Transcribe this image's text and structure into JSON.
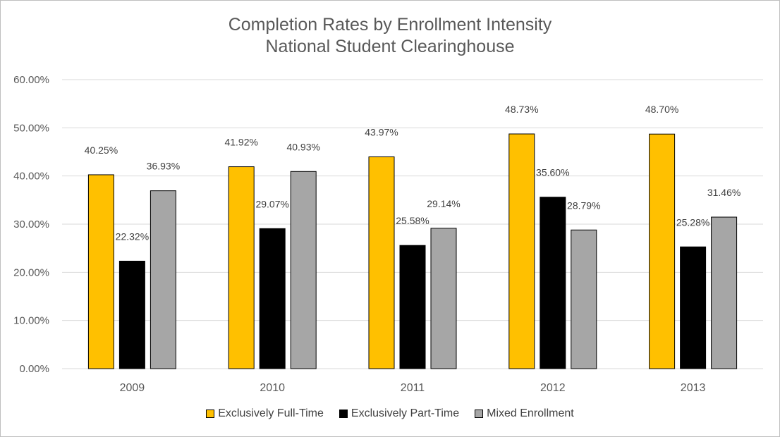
{
  "chart_data": {
    "type": "bar",
    "title": "Completion Rates by Enrollment Intensity",
    "subtitle": "National Student Clearinghouse",
    "xlabel": "",
    "ylabel": "",
    "categories": [
      "2009",
      "2010",
      "2011",
      "2012",
      "2013"
    ],
    "series": [
      {
        "name": "Exclusively Full-Time",
        "color": "#FFC000",
        "values": [
          40.25,
          41.92,
          43.97,
          48.73,
          48.7
        ]
      },
      {
        "name": "Exclusively Part-Time",
        "color": "#000000",
        "values": [
          22.32,
          29.07,
          25.58,
          35.6,
          25.28
        ]
      },
      {
        "name": "Mixed Enrollment",
        "color": "#A6A6A6",
        "values": [
          36.93,
          40.93,
          29.14,
          28.79,
          31.46
        ]
      }
    ],
    "ylim": [
      0,
      60
    ],
    "yticks": [
      0,
      10,
      20,
      30,
      40,
      50,
      60
    ],
    "ytick_labels": [
      "0.00%",
      "10.00%",
      "20.00%",
      "30.00%",
      "40.00%",
      "50.00%",
      "60.00%"
    ],
    "value_labels": [
      [
        "40.25%",
        "41.92%",
        "43.97%",
        "48.73%",
        "48.70%"
      ],
      [
        "22.32%",
        "29.07%",
        "25.58%",
        "35.60%",
        "25.28%"
      ],
      [
        "36.93%",
        "40.93%",
        "29.14%",
        "28.79%",
        "31.46%"
      ]
    ],
    "grid": true,
    "legend_position": "bottom",
    "colors": {
      "gridline": "#D9D9D9",
      "axis_text": "#595959",
      "bar_outline": "#000000"
    }
  }
}
